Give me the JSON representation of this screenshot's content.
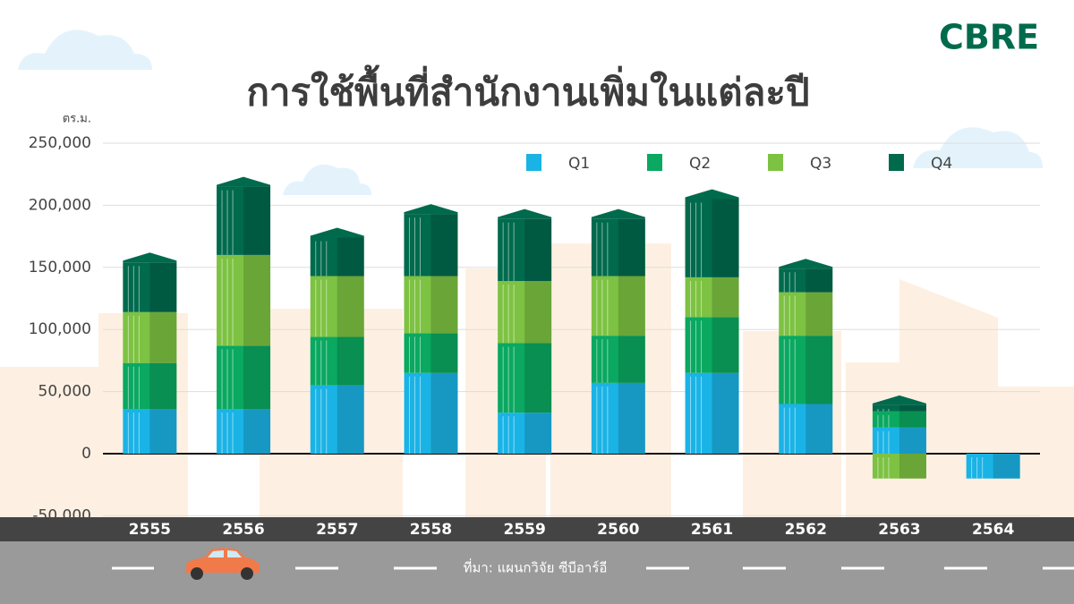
{
  "brand": "CBRE",
  "source": "ที่มา: แผนกวิจัย ซีบีอาร์อี",
  "chart_data": {
    "type": "stacked_bar",
    "title": "การใช้พื้นที่สำนักงานเพิ่มในแต่ละปี",
    "y_label": "ตร.ม.",
    "categories": [
      "2555",
      "2556",
      "2557",
      "2558",
      "2559",
      "2560",
      "2561",
      "2562",
      "2563",
      "2564"
    ],
    "series": [
      {
        "name": "Q1",
        "color": "#1ab3e6",
        "values": [
          36000,
          36000,
          55000,
          65000,
          33000,
          57000,
          65000,
          40000,
          21000,
          -20000
        ]
      },
      {
        "name": "Q2",
        "color": "#0aa860",
        "values": [
          37000,
          51000,
          39000,
          32000,
          56000,
          38000,
          45000,
          55000,
          13000,
          0
        ]
      },
      {
        "name": "Q3",
        "color": "#7dc242",
        "values": [
          41000,
          73000,
          49000,
          46000,
          50000,
          48000,
          32000,
          35000,
          -20000,
          0
        ]
      },
      {
        "name": "Q4",
        "color": "#006a4d",
        "values": [
          40000,
          55000,
          31000,
          50000,
          50000,
          46000,
          63000,
          19000,
          5000,
          0
        ]
      }
    ],
    "ylim": [
      -50000,
      250000
    ],
    "yticks": [
      {
        "value": -50000,
        "label": "-50,000"
      },
      0,
      {
        "value": 50000,
        "label": "50,000"
      },
      {
        "value": 100000,
        "label": "100,000"
      },
      {
        "value": 150000,
        "label": "150,000"
      },
      {
        "value": 200000,
        "label": "200,000"
      },
      {
        "value": 250000,
        "label": "250,000"
      }
    ],
    "grid": true,
    "legend": "upper right"
  }
}
